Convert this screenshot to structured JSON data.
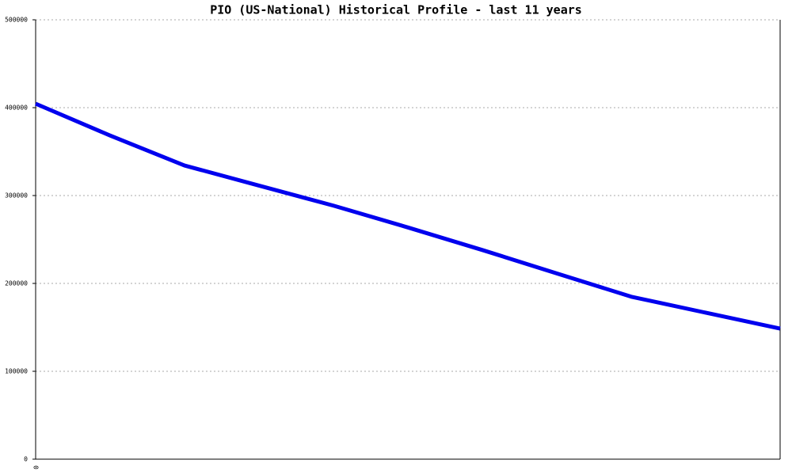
{
  "chart_data": {
    "type": "line",
    "title": "PIO (US-National) Historical Profile - last 11 years",
    "categories": [
      "0",
      null,
      null,
      null,
      null,
      null,
      null,
      null,
      null,
      null,
      null
    ],
    "series": [
      {
        "color": "#0000ee",
        "values": [
          404500,
          368300,
          334200,
          311300,
          288500,
          263700,
          238000,
          211400,
          184900,
          166700,
          148600
        ]
      }
    ],
    "ylim": [
      0,
      500000
    ],
    "yticks": [
      0,
      100000,
      200000,
      300000,
      400000,
      500000
    ],
    "grid": true
  }
}
